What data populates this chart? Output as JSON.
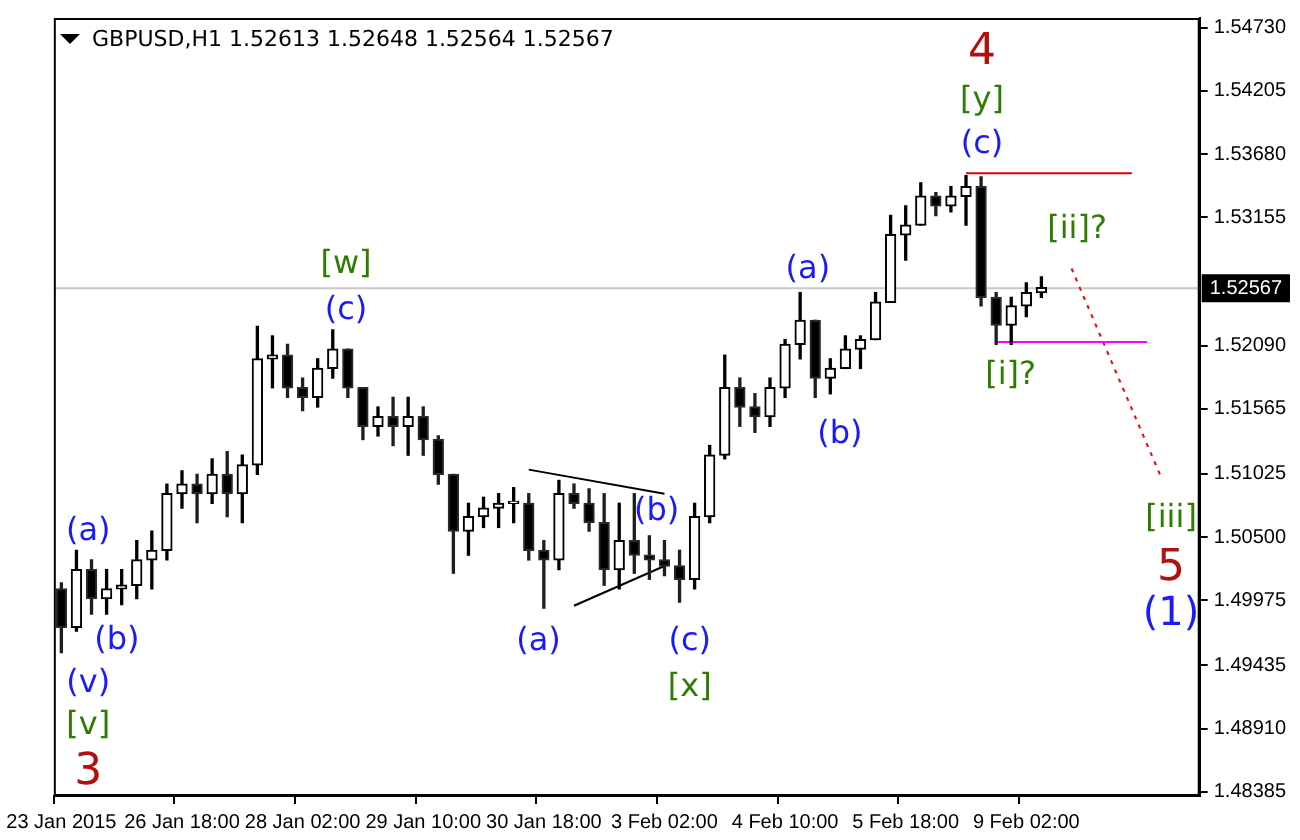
{
  "chart_data": {
    "type": "candlestick",
    "title": "GBPUSD,H1  1.52613 1.52648 1.52564 1.52567",
    "categories": [
      "23 Jan 2015",
      null,
      null,
      null,
      null,
      null,
      null,
      null,
      "26 Jan 18:00",
      null,
      null,
      null,
      null,
      null,
      null,
      null,
      "28 Jan 02:00",
      null,
      null,
      null,
      null,
      null,
      null,
      null,
      "29 Jan 10:00",
      null,
      null,
      null,
      null,
      null,
      null,
      null,
      "30 Jan 18:00",
      null,
      null,
      null,
      null,
      null,
      null,
      null,
      "3 Feb 02:00",
      null,
      null,
      null,
      null,
      null,
      null,
      null,
      "4 Feb 10:00",
      null,
      null,
      null,
      null,
      null,
      null,
      null,
      "5 Feb 18:00",
      null,
      null,
      null,
      null,
      null,
      null,
      null,
      "9 Feb 02:00",
      null,
      null,
      null,
      null,
      null,
      null,
      null,
      null,
      null,
      null,
      null
    ],
    "ohlc": [
      [
        1.5007,
        1.5012,
        1.4954,
        1.4975
      ],
      [
        1.4975,
        1.5039,
        1.4972,
        1.5023
      ],
      [
        1.5023,
        1.5031,
        1.4986,
        1.4999
      ],
      [
        1.4999,
        1.5023,
        1.4986,
        1.5007
      ],
      [
        1.5007,
        1.5023,
        1.4994,
        1.501
      ],
      [
        1.501,
        1.5047,
        1.4999,
        1.5031
      ],
      [
        1.5031,
        1.5055,
        1.5007,
        1.5039
      ],
      [
        1.5039,
        1.5094,
        1.5031,
        1.5086
      ],
      [
        1.5086,
        1.5105,
        1.5074,
        1.5094
      ],
      [
        1.5094,
        1.5102,
        1.5062,
        1.5086
      ],
      [
        1.5086,
        1.5115,
        1.5078,
        1.5102
      ],
      [
        1.5102,
        1.5121,
        1.5067,
        1.5086
      ],
      [
        1.5086,
        1.5118,
        1.5062,
        1.511
      ],
      [
        1.511,
        1.5225,
        1.5102,
        1.5198
      ],
      [
        1.5198,
        1.5217,
        1.5174,
        1.5201
      ],
      [
        1.5201,
        1.521,
        1.5166,
        1.5174
      ],
      [
        1.5174,
        1.5182,
        1.5155,
        1.5166
      ],
      [
        1.5166,
        1.5198,
        1.5158,
        1.519
      ],
      [
        1.519,
        1.5222,
        1.5182,
        1.5206
      ],
      [
        1.5206,
        1.5206,
        1.5166,
        1.5174
      ],
      [
        1.5174,
        1.5174,
        1.5131,
        1.5142
      ],
      [
        1.5142,
        1.5158,
        1.5134,
        1.515
      ],
      [
        1.515,
        1.5166,
        1.5126,
        1.5142
      ],
      [
        1.5142,
        1.5166,
        1.5118,
        1.515
      ],
      [
        1.515,
        1.5158,
        1.5118,
        1.5131
      ],
      [
        1.5131,
        1.5134,
        1.5094,
        1.5102
      ],
      [
        1.5102,
        1.5102,
        1.502,
        1.5055
      ],
      [
        1.5055,
        1.5078,
        1.5035,
        1.5067
      ],
      [
        1.5067,
        1.5083,
        1.5058,
        1.5074
      ],
      [
        1.5074,
        1.5086,
        1.5058,
        1.5078
      ],
      [
        1.5078,
        1.5091,
        1.5062,
        1.5078
      ],
      [
        1.5078,
        1.5086,
        1.5031,
        1.5039
      ],
      [
        1.5039,
        1.5047,
        1.4991,
        1.5031
      ],
      [
        1.5031,
        1.5097,
        1.5023,
        1.5086
      ],
      [
        1.5086,
        1.5094,
        1.5074,
        1.5078
      ],
      [
        1.5078,
        1.509,
        1.5055,
        1.5062
      ],
      [
        1.5062,
        1.5086,
        1.501,
        1.5023
      ],
      [
        1.5023,
        1.5078,
        1.5007,
        1.5047
      ],
      [
        1.5047,
        1.5086,
        1.502,
        1.5035
      ],
      [
        1.5035,
        1.5051,
        1.5015,
        1.5031
      ],
      [
        1.5031,
        1.5047,
        1.5018,
        1.5026
      ],
      [
        1.5026,
        1.5039,
        1.4996,
        1.5015
      ],
      [
        1.5015,
        1.5078,
        1.5007,
        1.5067
      ],
      [
        1.5067,
        1.5126,
        1.5062,
        1.5118
      ],
      [
        1.5118,
        1.5201,
        1.5115,
        1.5174
      ],
      [
        1.5174,
        1.5182,
        1.5142,
        1.5158
      ],
      [
        1.5158,
        1.5169,
        1.5137,
        1.515
      ],
      [
        1.515,
        1.5182,
        1.5142,
        1.5174
      ],
      [
        1.5174,
        1.5214,
        1.5166,
        1.521
      ],
      [
        1.521,
        1.5253,
        1.5198,
        1.523
      ],
      [
        1.523,
        1.523,
        1.5166,
        1.5182
      ],
      [
        1.5182,
        1.5198,
        1.5169,
        1.519
      ],
      [
        1.519,
        1.5217,
        1.519,
        1.5206
      ],
      [
        1.5206,
        1.5217,
        1.519,
        1.5214
      ],
      [
        1.5214,
        1.5253,
        1.5214,
        1.5245
      ],
      [
        1.5245,
        1.5317,
        1.5245,
        1.5301
      ],
      [
        1.5301,
        1.5325,
        1.528,
        1.5309
      ],
      [
        1.5309,
        1.5344,
        1.5309,
        1.5333
      ],
      [
        1.5333,
        1.5336,
        1.5317,
        1.5325
      ],
      [
        1.5325,
        1.5341,
        1.532,
        1.5333
      ],
      [
        1.5333,
        1.535,
        1.5309,
        1.5341
      ],
      [
        1.5341,
        1.5349,
        1.5242,
        1.5249
      ],
      [
        1.5249,
        1.5253,
        1.521,
        1.5226
      ],
      [
        1.5226,
        1.5249,
        1.521,
        1.5242
      ],
      [
        1.5242,
        1.5261,
        1.5233,
        1.5253
      ],
      [
        1.5253,
        1.5266,
        1.5249,
        1.5257
      ],
      null,
      null,
      null,
      null,
      null,
      null,
      null,
      null,
      null,
      null
    ],
    "series": [
      {
        "type": "line",
        "color": "#e00000",
        "line_style": "solid",
        "values": [
          null,
          null,
          null,
          null,
          null,
          null,
          null,
          null,
          null,
          null,
          null,
          null,
          null,
          null,
          null,
          null,
          null,
          null,
          null,
          null,
          null,
          null,
          null,
          null,
          null,
          null,
          null,
          null,
          null,
          null,
          null,
          null,
          null,
          null,
          null,
          null,
          null,
          null,
          null,
          null,
          null,
          null,
          null,
          null,
          null,
          null,
          null,
          null,
          null,
          null,
          null,
          null,
          null,
          null,
          null,
          null,
          null,
          null,
          null,
          null,
          1.5352,
          null,
          null,
          null,
          null,
          null,
          null,
          null,
          null,
          null,
          null,
          1.5352,
          null,
          null,
          null,
          null
        ]
      },
      {
        "type": "line",
        "color": "#ff00ff",
        "line_style": "solid",
        "values": [
          null,
          null,
          null,
          null,
          null,
          null,
          null,
          null,
          null,
          null,
          null,
          null,
          null,
          null,
          null,
          null,
          null,
          null,
          null,
          null,
          null,
          null,
          null,
          null,
          null,
          null,
          null,
          null,
          null,
          null,
          null,
          null,
          null,
          null,
          null,
          null,
          null,
          null,
          null,
          null,
          null,
          null,
          null,
          null,
          null,
          null,
          null,
          null,
          null,
          null,
          null,
          null,
          null,
          null,
          null,
          null,
          null,
          null,
          null,
          null,
          null,
          null,
          1.5212,
          null,
          null,
          null,
          null,
          null,
          null,
          null,
          null,
          null,
          1.5212,
          null,
          null,
          null
        ]
      },
      {
        "type": "line",
        "color": "#000000",
        "line_style": "solid",
        "values": [
          null,
          null,
          null,
          null,
          null,
          null,
          null,
          null,
          null,
          null,
          null,
          null,
          null,
          null,
          null,
          null,
          null,
          null,
          null,
          null,
          null,
          null,
          null,
          null,
          null,
          null,
          null,
          null,
          null,
          null,
          null,
          1.5106,
          null,
          null,
          null,
          null,
          null,
          null,
          null,
          null,
          1.5086,
          null,
          null,
          null,
          null,
          null,
          null,
          null,
          null,
          null,
          null,
          null,
          null,
          null,
          null,
          null,
          null,
          null,
          null,
          null,
          null,
          null,
          null,
          null,
          null,
          null,
          null,
          null,
          null,
          null,
          null,
          null,
          null,
          null,
          null,
          null
        ]
      },
      {
        "type": "line",
        "color": "#000000",
        "line_style": "solid",
        "values": [
          null,
          null,
          null,
          null,
          null,
          null,
          null,
          null,
          null,
          null,
          null,
          null,
          null,
          null,
          null,
          null,
          null,
          null,
          null,
          null,
          null,
          null,
          null,
          null,
          null,
          null,
          null,
          null,
          null,
          null,
          null,
          null,
          null,
          null,
          1.4993,
          null,
          null,
          null,
          null,
          null,
          1.5026,
          null,
          null,
          null,
          null,
          null,
          null,
          null,
          null,
          null,
          null,
          null,
          null,
          null,
          null,
          null,
          null,
          null,
          null,
          null,
          null,
          null,
          null,
          null,
          null,
          null,
          null,
          null,
          null,
          null,
          null,
          null,
          null,
          null,
          null,
          null
        ]
      },
      {
        "type": "line",
        "color": "#ff0000",
        "line_style": "dotted",
        "values": [
          null,
          null,
          null,
          null,
          null,
          null,
          null,
          null,
          null,
          null,
          null,
          null,
          null,
          null,
          null,
          null,
          null,
          null,
          null,
          null,
          null,
          null,
          null,
          null,
          null,
          null,
          null,
          null,
          null,
          null,
          null,
          null,
          null,
          null,
          null,
          null,
          null,
          null,
          null,
          null,
          null,
          null,
          null,
          null,
          null,
          null,
          null,
          null,
          null,
          null,
          null,
          null,
          null,
          null,
          null,
          null,
          null,
          null,
          null,
          null,
          null,
          null,
          null,
          null,
          null,
          null,
          null,
          1.5273,
          null,
          null,
          null,
          null,
          null,
          1.5098,
          null,
          null
        ]
      }
    ],
    "ylim": [
      1.4835,
      1.5481
    ],
    "yticks": [
      {
        "value": 1.5473,
        "label": "1.54730"
      },
      1.54205,
      {
        "value": 1.5368,
        "label": "1.53680"
      },
      1.53155,
      {
        "value": 1.5209,
        "label": "1.52090"
      },
      1.51565,
      1.51025,
      {
        "value": 1.505,
        "label": "1.50500"
      },
      1.49975,
      1.49435,
      {
        "value": 1.4891,
        "label": "1.48910"
      },
      1.48385
    ],
    "ref_lines": [
      {
        "axis": "y",
        "value": 1.52567,
        "label": "1.52567",
        "color": "#c8c8c8"
      }
    ],
    "annotations": [
      "(a)",
      "(b)",
      "(v)",
      "[v]",
      "3",
      "[w]",
      "(c)",
      "(a)",
      "(b)",
      "(c)",
      "[x]",
      "(a)",
      "(b)",
      "4",
      "[y]",
      "(c)",
      "[ii]?",
      "[i]?",
      "[iii]",
      "5",
      "(1)"
    ],
    "legend": false,
    "grid": false
  }
}
